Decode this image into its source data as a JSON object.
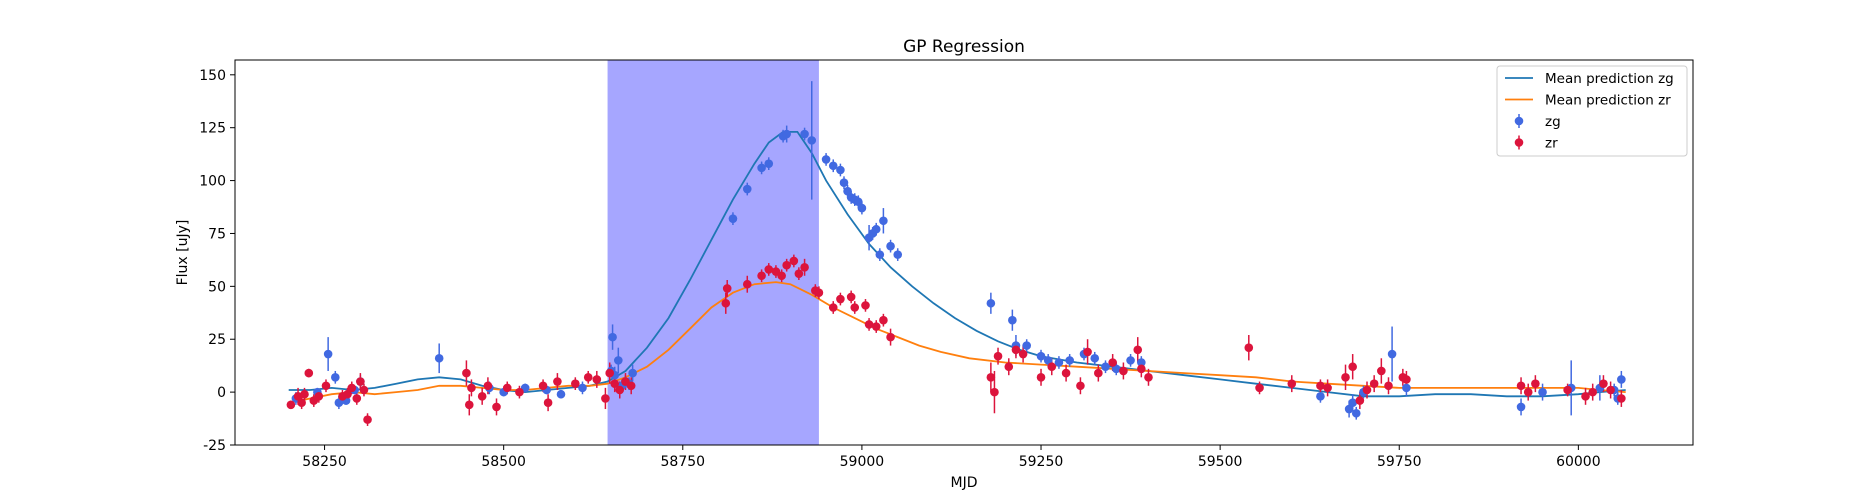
{
  "chart_data": {
    "type": "scatter",
    "title": "GP Regression",
    "xlabel": "MJD",
    "ylabel": "Flux [uJy]",
    "xlim": [
      58125,
      60160
    ],
    "ylim": [
      -25,
      157
    ],
    "xticks": [
      58250,
      58500,
      58750,
      59000,
      59250,
      59500,
      59750,
      60000
    ],
    "yticks": [
      -25,
      0,
      25,
      50,
      75,
      100,
      125,
      150
    ],
    "grid": false,
    "legend_position": "top-right",
    "shaded_region": {
      "x": [
        58645,
        58940
      ],
      "color": "#a6a6ff"
    },
    "series": [
      {
        "name": "Mean prediction zg",
        "kind": "line",
        "color": "#1f77b4",
        "x": [
          58200,
          58230,
          58260,
          58290,
          58320,
          58350,
          58380,
          58410,
          58440,
          58470,
          58500,
          58530,
          58560,
          58590,
          58620,
          58645,
          58670,
          58700,
          58730,
          58760,
          58790,
          58820,
          58850,
          58870,
          58890,
          58910,
          58930,
          58950,
          58980,
          59010,
          59040,
          59070,
          59100,
          59130,
          59160,
          59190,
          59220,
          59250,
          59300,
          59350,
          59400,
          59450,
          59500,
          59550,
          59600,
          59650,
          59700,
          59750,
          59800,
          59850,
          59900,
          59950,
          60000,
          60030,
          60066
        ],
        "y": [
          1,
          1,
          2,
          1,
          2,
          4,
          6,
          7,
          6,
          3,
          1,
          0,
          1,
          2,
          3,
          5,
          10,
          21,
          35,
          53,
          72,
          91,
          108,
          118,
          123,
          123,
          113,
          100,
          84,
          70,
          59,
          50,
          42,
          35,
          29,
          24,
          20,
          17,
          14,
          12,
          10,
          8,
          6,
          4,
          2,
          0,
          -2,
          -2,
          -1,
          -1,
          -2,
          -2,
          -1,
          0,
          1
        ]
      },
      {
        "name": "Mean prediction zr",
        "kind": "line",
        "color": "#ff7f0e",
        "x": [
          58200,
          58230,
          58260,
          58290,
          58320,
          58350,
          58380,
          58410,
          58440,
          58470,
          58500,
          58530,
          58560,
          58590,
          58620,
          58645,
          58670,
          58700,
          58730,
          58760,
          58790,
          58820,
          58850,
          58880,
          58900,
          58930,
          58960,
          58990,
          59020,
          59050,
          59080,
          59110,
          59150,
          59200,
          59250,
          59300,
          59350,
          59400,
          59450,
          59500,
          59550,
          59600,
          59650,
          59700,
          59750,
          59800,
          59850,
          59900,
          59950,
          60000,
          60030,
          60066
        ],
        "y": [
          -5,
          -3,
          -1,
          0,
          -1,
          0,
          1,
          3,
          3,
          2,
          1,
          1,
          2,
          3,
          3,
          4,
          7,
          12,
          20,
          30,
          40,
          47,
          51,
          52,
          51,
          46,
          40,
          35,
          30,
          26,
          22,
          19,
          16,
          14,
          13,
          12,
          11,
          10,
          9,
          8,
          7,
          5,
          4,
          3,
          2,
          2,
          2,
          2,
          2,
          2,
          1,
          0
        ]
      },
      {
        "name": "zg",
        "kind": "errorbar",
        "color": "#4169e1",
        "x": [
          58210,
          58240,
          58255,
          58265,
          58270,
          58280,
          58292,
          58300,
          58410,
          58480,
          58500,
          58530,
          58560,
          58580,
          58610,
          58650,
          58652,
          58655,
          58660,
          58665,
          58670,
          58675,
          58680,
          58820,
          58840,
          58860,
          58870,
          58890,
          58895,
          58920,
          58930,
          58950,
          58960,
          58970,
          58975,
          58980,
          58985,
          58990,
          58995,
          59000,
          59010,
          59015,
          59020,
          59025,
          59030,
          59040,
          59050,
          59180,
          59210,
          59215,
          59230,
          59250,
          59260,
          59275,
          59290,
          59310,
          59325,
          59340,
          59355,
          59375,
          59390,
          59640,
          59680,
          59685,
          59690,
          59700,
          59740,
          59760,
          59920,
          59950,
          59990,
          60030,
          60050,
          60055,
          60060
        ],
        "y": [
          -3,
          0,
          18,
          7,
          -5,
          -4,
          1,
          5,
          16,
          2,
          0,
          2,
          1,
          -1,
          2,
          10,
          26,
          8,
          15,
          3,
          5,
          4,
          9,
          82,
          96,
          106,
          108,
          121,
          122,
          122,
          119,
          110,
          107,
          105,
          99,
          95,
          92,
          91,
          90,
          87,
          73,
          75,
          77,
          65,
          81,
          69,
          65,
          42,
          34,
          22,
          22,
          17,
          15,
          14,
          15,
          18,
          16,
          12,
          11,
          15,
          14,
          -2,
          -8,
          -5,
          -10,
          0,
          18,
          2,
          -7,
          0,
          2,
          2,
          1,
          -3,
          6
        ],
        "yerr": [
          3,
          2,
          8,
          3,
          3,
          2,
          2,
          3,
          7,
          3,
          2,
          2,
          2,
          2,
          3,
          3,
          6,
          4,
          6,
          3,
          3,
          3,
          4,
          3,
          3,
          3,
          3,
          3,
          4,
          3,
          28,
          3,
          3,
          3,
          3,
          3,
          3,
          3,
          3,
          3,
          6,
          3,
          3,
          3,
          6,
          3,
          3,
          5,
          5,
          5,
          3,
          3,
          3,
          3,
          3,
          3,
          3,
          3,
          3,
          3,
          3,
          3,
          4,
          4,
          3,
          3,
          13,
          4,
          4,
          4,
          13,
          6,
          3,
          3,
          4
        ]
      },
      {
        "name": "zr",
        "kind": "errorbar",
        "color": "#dc143c",
        "x": [
          58203,
          58213,
          58218,
          58222,
          58228,
          58235,
          58242,
          58252,
          58275,
          58282,
          58288,
          58295,
          58300,
          58305,
          58310,
          58448,
          58452,
          58455,
          58470,
          58478,
          58490,
          58505,
          58522,
          58555,
          58562,
          58575,
          58600,
          58618,
          58630,
          58642,
          58648,
          58655,
          58662,
          58670,
          58678,
          58810,
          58812,
          58840,
          58860,
          58870,
          58880,
          58888,
          58895,
          58905,
          58912,
          58920,
          58935,
          58940,
          58960,
          58970,
          58985,
          58990,
          59005,
          59010,
          59020,
          59030,
          59040,
          59180,
          59185,
          59190,
          59205,
          59215,
          59225,
          59250,
          59265,
          59285,
          59305,
          59315,
          59330,
          59350,
          59365,
          59385,
          59390,
          59400,
          59540,
          59555,
          59600,
          59640,
          59650,
          59675,
          59685,
          59695,
          59705,
          59715,
          59725,
          59735,
          59755,
          59760,
          59920,
          59930,
          59940,
          59985,
          60010,
          60020,
          60035,
          60045,
          60060
        ],
        "y": [
          -6,
          -2,
          -5,
          -1,
          9,
          -4,
          -2,
          3,
          -2,
          -1,
          2,
          -3,
          5,
          1,
          -13,
          9,
          -6,
          2,
          -2,
          3,
          -7,
          2,
          0,
          3,
          -5,
          5,
          4,
          7,
          6,
          -3,
          9,
          4,
          1,
          5,
          3,
          42,
          49,
          51,
          55,
          58,
          57,
          55,
          60,
          62,
          56,
          59,
          48,
          47,
          40,
          44,
          45,
          40,
          41,
          32,
          31,
          34,
          26,
          7,
          0,
          17,
          12,
          20,
          18,
          7,
          12,
          9,
          3,
          19,
          9,
          14,
          10,
          20,
          11,
          7,
          21,
          2,
          4,
          3,
          2,
          7,
          12,
          -4,
          1,
          4,
          10,
          3,
          7,
          6,
          3,
          0,
          4,
          1,
          -2,
          0,
          4,
          1,
          -3
        ],
        "yerr": [
          2,
          4,
          3,
          3,
          2,
          3,
          3,
          3,
          3,
          3,
          3,
          3,
          4,
          3,
          3,
          6,
          5,
          4,
          4,
          4,
          4,
          3,
          3,
          3,
          4,
          4,
          3,
          3,
          4,
          5,
          5,
          4,
          4,
          4,
          4,
          5,
          4,
          4,
          3,
          3,
          3,
          3,
          3,
          3,
          3,
          4,
          3,
          3,
          3,
          3,
          3,
          3,
          3,
          3,
          3,
          3,
          4,
          7,
          10,
          4,
          4,
          4,
          4,
          4,
          4,
          4,
          4,
          6,
          4,
          4,
          4,
          6,
          4,
          4,
          6,
          3,
          4,
          3,
          4,
          6,
          6,
          4,
          4,
          4,
          6,
          4,
          4,
          4,
          4,
          4,
          4,
          3,
          4,
          4,
          4,
          4,
          4
        ]
      }
    ]
  }
}
